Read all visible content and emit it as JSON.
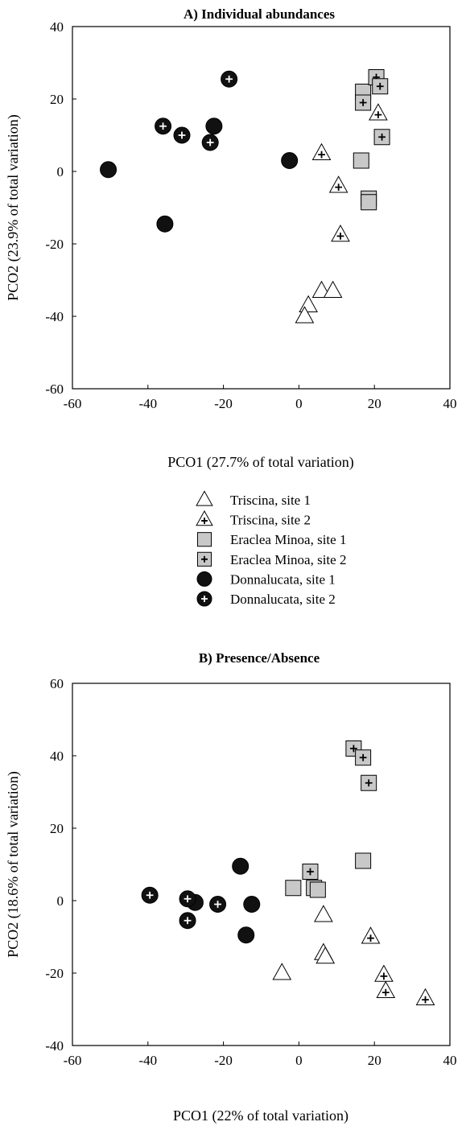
{
  "chart_data": [
    {
      "type": "scatter",
      "title": "A) Individual abundances",
      "xlabel": "PCO1 (27.7% of total variation)",
      "ylabel": "PCO2 (23.9% of total variation)",
      "xlim": [
        -60,
        40
      ],
      "ylim": [
        -60,
        40
      ],
      "xticks": [
        -60,
        -40,
        -20,
        0,
        20,
        40
      ],
      "yticks": [
        -60,
        -40,
        -20,
        0,
        20,
        40
      ],
      "series": [
        {
          "name": "Triscina, site 1",
          "marker": "triangle",
          "points": [
            [
              6,
              -33
            ],
            [
              9,
              -33
            ],
            [
              2.5,
              -37
            ],
            [
              1.5,
              -40
            ]
          ]
        },
        {
          "name": "Triscina, site 2",
          "marker": "triangle-plus",
          "points": [
            [
              6,
              5
            ],
            [
              10.5,
              -4
            ],
            [
              11,
              -17.5
            ],
            [
              21,
              16
            ]
          ]
        },
        {
          "name": "Eraclea Minoa, site 1",
          "marker": "square",
          "points": [
            [
              17,
              22
            ],
            [
              16.5,
              3
            ],
            [
              18.5,
              -7.5
            ],
            [
              18.5,
              -8.5
            ]
          ]
        },
        {
          "name": "Eraclea Minoa, site 2",
          "marker": "square-plus",
          "points": [
            [
              20.5,
              26
            ],
            [
              21.5,
              23.5
            ],
            [
              17,
              19
            ],
            [
              22,
              9.5
            ]
          ]
        },
        {
          "name": "Donnalucata, site 1",
          "marker": "circle",
          "points": [
            [
              -50.5,
              0.5
            ],
            [
              -22.5,
              12.5
            ],
            [
              -35.5,
              -14.5
            ],
            [
              -2.5,
              3
            ]
          ]
        },
        {
          "name": "Donnalucata, site 2",
          "marker": "circle-plus",
          "points": [
            [
              -18.5,
              25.5
            ],
            [
              -36,
              12.5
            ],
            [
              -31,
              10
            ],
            [
              -23.5,
              8
            ]
          ]
        }
      ]
    },
    {
      "type": "scatter",
      "title": "B) Presence/Absence",
      "xlabel": "PCO1 (22% of total variation)",
      "ylabel": "PCO2 (18.6% of total variation)",
      "xlim": [
        -60,
        40
      ],
      "ylim": [
        -40,
        60
      ],
      "xticks": [
        -60,
        -40,
        -20,
        0,
        20,
        40
      ],
      "yticks": [
        -40,
        -20,
        0,
        20,
        40,
        60
      ],
      "series": [
        {
          "name": "Triscina, site 1",
          "marker": "triangle",
          "points": [
            [
              -4.5,
              -20
            ],
            [
              6.5,
              -4
            ],
            [
              6.5,
              -14.5
            ],
            [
              7,
              -15.5
            ]
          ]
        },
        {
          "name": "Triscina, site 2",
          "marker": "triangle-plus",
          "points": [
            [
              19,
              -10
            ],
            [
              22.5,
              -20.5
            ],
            [
              23,
              -25
            ],
            [
              33.5,
              -27
            ]
          ]
        },
        {
          "name": "Eraclea Minoa, site 1",
          "marker": "square",
          "points": [
            [
              -1.5,
              3.5
            ],
            [
              4,
              3.5
            ],
            [
              5,
              3
            ],
            [
              17,
              11
            ]
          ]
        },
        {
          "name": "Eraclea Minoa, site 2",
          "marker": "square-plus",
          "points": [
            [
              14.5,
              42
            ],
            [
              17,
              39.5
            ],
            [
              18.5,
              32.5
            ],
            [
              3,
              8
            ]
          ]
        },
        {
          "name": "Donnalucata, site 1",
          "marker": "circle",
          "points": [
            [
              -27.5,
              -0.5
            ],
            [
              -15.5,
              9.5
            ],
            [
              -12.5,
              -1
            ],
            [
              -14,
              -9.5
            ]
          ]
        },
        {
          "name": "Donnalucata, site 2",
          "marker": "circle-plus",
          "points": [
            [
              -39.5,
              1.5
            ],
            [
              -29.5,
              0.5
            ],
            [
              -29.5,
              -5.5
            ],
            [
              -21.5,
              -1
            ]
          ]
        }
      ]
    }
  ],
  "legend": [
    {
      "label": "Triscina, site 1",
      "marker": "triangle"
    },
    {
      "label": "Triscina, site 2",
      "marker": "triangle-plus"
    },
    {
      "label": "Eraclea Minoa, site 1",
      "marker": "square"
    },
    {
      "label": "Eraclea Minoa, site 2",
      "marker": "square-plus"
    },
    {
      "label": "Donnalucata, site 1",
      "marker": "circle"
    },
    {
      "label": "Donnalucata, site 2",
      "marker": "circle-plus"
    }
  ],
  "colors": {
    "square_fill": "#c8c8c8",
    "circle_fill": "#111111",
    "triangle_fill": "#ffffff",
    "stroke": "#000000"
  }
}
